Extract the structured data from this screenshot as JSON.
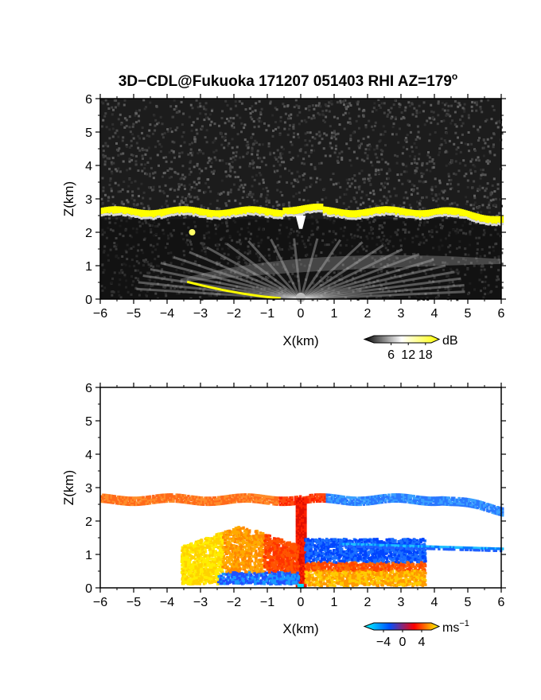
{
  "title": "3D−CDL@Fukuoka 171207 051403 RHI AZ=179",
  "title_superscript": "o",
  "chart_data": [
    {
      "type": "heatmap",
      "variable": "intensity",
      "xlabel": "X(km)",
      "ylabel": "Z(km)",
      "xlim": [
        -6,
        6
      ],
      "ylim": [
        0,
        6
      ],
      "xticks": [
        "−6",
        "−5",
        "−4",
        "−3",
        "−2",
        "−1",
        "0",
        "1",
        "2",
        "3",
        "4",
        "5",
        "6"
      ],
      "yticks": [
        "0",
        "1",
        "2",
        "3",
        "4",
        "5",
        "6"
      ],
      "colorbar": {
        "unit": "dB",
        "ticks": [
          "6",
          "12",
          "18"
        ],
        "tick_values": [
          6,
          12,
          18
        ],
        "range": [
          0,
          20
        ],
        "colors": [
          "#000000",
          "#ffffff",
          "#ffff00"
        ]
      },
      "features": {
        "cloud_layer_top_km": 2.7,
        "cloud_layer_bottom_km": 2.4,
        "origin_km": [
          0,
          0
        ]
      }
    },
    {
      "type": "heatmap",
      "variable": "velocity",
      "xlabel": "X(km)",
      "ylabel": "Z(km)",
      "xlim": [
        -6,
        6
      ],
      "ylim": [
        0,
        6
      ],
      "xticks": [
        "−6",
        "−5",
        "−4",
        "−3",
        "−2",
        "−1",
        "0",
        "1",
        "2",
        "3",
        "4",
        "5",
        "6"
      ],
      "yticks": [
        "0",
        "1",
        "2",
        "3",
        "4",
        "5",
        "6"
      ],
      "colorbar": {
        "unit": "ms",
        "unit_superscript": "−1",
        "ticks": [
          "−4",
          "0",
          "4"
        ],
        "tick_values": [
          -4,
          0,
          4
        ],
        "range": [
          -6,
          6
        ],
        "colors": [
          "#00ffff",
          "#0050ff",
          "#ff0000",
          "#ffff00"
        ]
      },
      "features": {
        "left_side_sign": "positive",
        "right_side_sign": "negative"
      }
    }
  ]
}
